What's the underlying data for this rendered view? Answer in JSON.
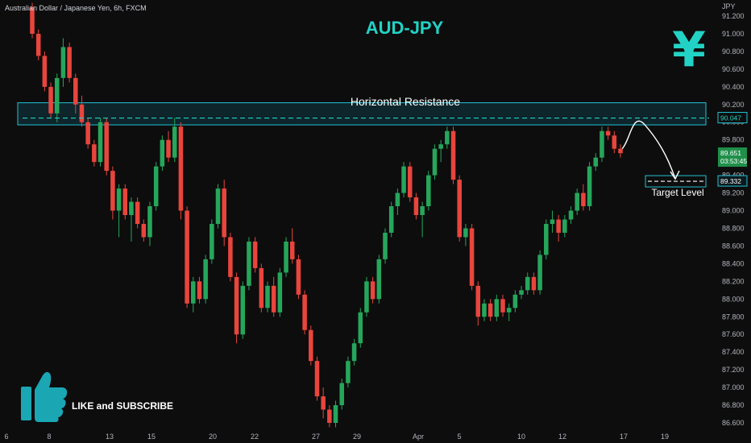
{
  "header": {
    "symbol": "Australian Dollar / Japanese Yen, 6h, FXCM",
    "title": "AUD-JPY",
    "currency_unit": "JPY",
    "currency_symbol": "¥"
  },
  "annotations": {
    "resistance_label": "Horizontal Resistance",
    "target_label": "Target Level",
    "cta_text": "LIKE and SUBSCRIBE"
  },
  "price_tags": {
    "resistance": "90.047",
    "current": "89.651",
    "countdown": "03:53:45",
    "target": "89.332"
  },
  "colors": {
    "up": "#26a65b",
    "down": "#e8453c",
    "accent": "#22d3c5",
    "current_tag": "#1f8f4a",
    "zone_fill": "#0f3a45",
    "zone_stroke": "#22c3d3"
  },
  "chart_data": {
    "type": "candlestick",
    "ylim": [
      86.5,
      91.3
    ],
    "y_ticks": [
      "91.200",
      "91.000",
      "90.800",
      "90.600",
      "90.400",
      "90.200",
      "90.000",
      "89.800",
      "89.600",
      "89.400",
      "89.200",
      "89.000",
      "88.800",
      "88.600",
      "88.400",
      "88.200",
      "88.000",
      "87.800",
      "87.600",
      "87.400",
      "87.200",
      "87.000",
      "86.800",
      "86.600"
    ],
    "x_ticks": [
      "6",
      "8",
      "13",
      "15",
      "20",
      "22",
      "27",
      "29",
      "Apr",
      "5",
      "10",
      "12",
      "17",
      "19"
    ],
    "resistance_zone": [
      89.97,
      90.22
    ],
    "resistance_level": 90.047,
    "target_level": 89.332,
    "current_price": 89.651,
    "projection": [
      89.7,
      89.9,
      89.35
    ],
    "candles": [
      [
        91.3,
        91.35,
        90.95,
        91.0
      ],
      [
        91.0,
        91.05,
        90.7,
        90.75
      ],
      [
        90.75,
        90.8,
        90.35,
        90.4
      ],
      [
        90.4,
        90.45,
        90.05,
        90.1
      ],
      [
        90.1,
        90.55,
        90.0,
        90.5
      ],
      [
        90.5,
        90.95,
        90.4,
        90.85
      ],
      [
        90.85,
        90.9,
        90.45,
        90.5
      ],
      [
        90.5,
        90.55,
        90.1,
        90.2
      ],
      [
        90.2,
        90.3,
        89.95,
        90.0
      ],
      [
        90.0,
        90.05,
        89.7,
        89.75
      ],
      [
        89.75,
        89.8,
        89.5,
        89.55
      ],
      [
        89.55,
        90.05,
        89.5,
        90.0
      ],
      [
        90.0,
        90.05,
        89.4,
        89.45
      ],
      [
        89.45,
        89.5,
        88.9,
        89.0
      ],
      [
        89.0,
        89.3,
        88.7,
        89.25
      ],
      [
        89.25,
        89.3,
        88.9,
        88.95
      ],
      [
        88.95,
        89.15,
        88.65,
        89.1
      ],
      [
        89.1,
        89.15,
        88.8,
        88.85
      ],
      [
        88.85,
        88.9,
        88.65,
        88.7
      ],
      [
        88.7,
        89.1,
        88.6,
        89.05
      ],
      [
        89.05,
        89.55,
        89.0,
        89.5
      ],
      [
        89.5,
        89.85,
        89.45,
        89.8
      ],
      [
        89.8,
        89.9,
        89.55,
        89.6
      ],
      [
        89.6,
        90.05,
        89.55,
        89.95
      ],
      [
        89.95,
        90.0,
        88.9,
        89.0
      ],
      [
        89.0,
        89.05,
        87.9,
        87.95
      ],
      [
        87.95,
        88.25,
        87.85,
        88.2
      ],
      [
        88.2,
        88.25,
        87.95,
        88.0
      ],
      [
        88.0,
        88.5,
        87.95,
        88.45
      ],
      [
        88.45,
        88.9,
        88.4,
        88.85
      ],
      [
        88.85,
        89.3,
        88.8,
        89.25
      ],
      [
        89.25,
        89.35,
        88.6,
        88.7
      ],
      [
        88.7,
        88.75,
        88.2,
        88.25
      ],
      [
        88.25,
        88.3,
        87.5,
        87.6
      ],
      [
        87.6,
        88.2,
        87.55,
        88.15
      ],
      [
        88.15,
        88.7,
        88.1,
        88.65
      ],
      [
        88.65,
        88.7,
        88.3,
        88.35
      ],
      [
        88.35,
        88.4,
        87.85,
        87.9
      ],
      [
        87.9,
        88.2,
        87.85,
        88.15
      ],
      [
        88.15,
        88.25,
        87.8,
        87.85
      ],
      [
        87.85,
        88.35,
        87.8,
        88.3
      ],
      [
        88.3,
        88.7,
        88.25,
        88.65
      ],
      [
        88.65,
        88.8,
        88.4,
        88.45
      ],
      [
        88.45,
        88.5,
        88.0,
        88.05
      ],
      [
        88.05,
        88.1,
        87.6,
        87.65
      ],
      [
        87.65,
        87.7,
        87.25,
        87.3
      ],
      [
        87.3,
        87.35,
        86.85,
        86.9
      ],
      [
        86.9,
        87.0,
        86.65,
        86.75
      ],
      [
        86.75,
        86.8,
        86.55,
        86.6
      ],
      [
        86.6,
        86.85,
        86.55,
        86.8
      ],
      [
        86.8,
        87.1,
        86.75,
        87.05
      ],
      [
        87.05,
        87.35,
        87.0,
        87.3
      ],
      [
        87.3,
        87.55,
        87.25,
        87.5
      ],
      [
        87.5,
        87.9,
        87.45,
        87.85
      ],
      [
        87.85,
        88.25,
        87.8,
        88.2
      ],
      [
        88.2,
        88.25,
        87.95,
        88.0
      ],
      [
        88.0,
        88.5,
        87.95,
        88.45
      ],
      [
        88.45,
        88.8,
        88.4,
        88.75
      ],
      [
        88.75,
        89.1,
        88.7,
        89.05
      ],
      [
        89.05,
        89.25,
        88.95,
        89.2
      ],
      [
        89.2,
        89.55,
        89.15,
        89.5
      ],
      [
        89.5,
        89.55,
        89.1,
        89.15
      ],
      [
        89.15,
        89.2,
        88.9,
        88.95
      ],
      [
        88.95,
        89.1,
        88.7,
        89.05
      ],
      [
        89.05,
        89.45,
        89.0,
        89.4
      ],
      [
        89.4,
        89.75,
        89.35,
        89.7
      ],
      [
        89.7,
        89.8,
        89.55,
        89.75
      ],
      [
        89.75,
        89.95,
        89.7,
        89.9
      ],
      [
        89.9,
        89.95,
        89.3,
        89.35
      ],
      [
        89.35,
        89.4,
        88.65,
        88.7
      ],
      [
        88.7,
        88.85,
        88.6,
        88.8
      ],
      [
        88.8,
        88.85,
        88.1,
        88.15
      ],
      [
        88.15,
        88.2,
        87.7,
        87.8
      ],
      [
        87.8,
        88.0,
        87.75,
        87.95
      ],
      [
        87.95,
        88.0,
        87.75,
        87.8
      ],
      [
        87.8,
        88.05,
        87.75,
        88.0
      ],
      [
        88.0,
        88.05,
        87.8,
        87.85
      ],
      [
        87.85,
        87.95,
        87.75,
        87.9
      ],
      [
        87.9,
        88.1,
        87.85,
        88.05
      ],
      [
        88.05,
        88.15,
        88.0,
        88.1
      ],
      [
        88.1,
        88.3,
        88.05,
        88.25
      ],
      [
        88.25,
        88.3,
        88.05,
        88.1
      ],
      [
        88.1,
        88.55,
        88.05,
        88.5
      ],
      [
        88.5,
        88.9,
        88.45,
        88.85
      ],
      [
        88.85,
        89.0,
        88.75,
        88.9
      ],
      [
        88.9,
        88.95,
        88.65,
        88.75
      ],
      [
        88.75,
        88.95,
        88.7,
        88.9
      ],
      [
        88.9,
        89.05,
        88.85,
        89.0
      ],
      [
        89.0,
        89.25,
        88.95,
        89.2
      ],
      [
        89.2,
        89.3,
        89.0,
        89.05
      ],
      [
        89.05,
        89.55,
        89.0,
        89.5
      ],
      [
        89.5,
        89.65,
        89.45,
        89.6
      ],
      [
        89.6,
        89.95,
        89.55,
        89.9
      ],
      [
        89.9,
        89.95,
        89.8,
        89.85
      ],
      [
        89.85,
        89.9,
        89.65,
        89.7
      ],
      [
        89.7,
        89.75,
        89.6,
        89.65
      ]
    ]
  }
}
